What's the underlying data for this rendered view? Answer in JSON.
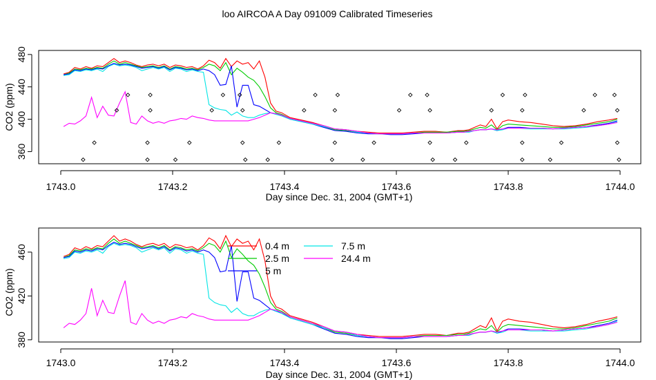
{
  "title": "loo AIRCOA A  Day 091009  Calibrated Timeseries",
  "colors": {
    "0.4 m": "#ff0000",
    "2.5 m": "#00cc00",
    "5 m": "#0000ff",
    "7.5 m": "#00e5e5",
    "24.4 m": "#ff00ff",
    "points": "#000000",
    "frame": "#000000"
  },
  "chart_data": [
    {
      "type": "line",
      "xlabel": "Day since Dec. 31, 2004 (GMT+1)",
      "ylabel": "CO2 (ppm)",
      "xlim": [
        1743.0,
        1744.0
      ],
      "ylim": [
        345,
        485
      ],
      "xticks": [
        1743.0,
        1743.2,
        1743.4,
        1743.6,
        1743.8,
        1744.0
      ],
      "xtick_labels": [
        "1743.0",
        "1743.2",
        "1743.4",
        "1743.6",
        "1743.8",
        "1744.0"
      ],
      "yticks": [
        360,
        400,
        440,
        480
      ],
      "ytick_labels": [
        "360",
        "400",
        "440",
        "480"
      ],
      "grid": false,
      "legend": "none",
      "points": [
        {
          "x": 1743.04,
          "y": 350
        },
        {
          "x": 1743.06,
          "y": 371
        },
        {
          "x": 1743.1,
          "y": 411
        },
        {
          "x": 1743.12,
          "y": 430
        },
        {
          "x": 1743.155,
          "y": 350
        },
        {
          "x": 1743.155,
          "y": 371
        },
        {
          "x": 1743.16,
          "y": 411
        },
        {
          "x": 1743.16,
          "y": 430
        },
        {
          "x": 1743.205,
          "y": 350
        },
        {
          "x": 1743.23,
          "y": 371
        },
        {
          "x": 1743.27,
          "y": 411
        },
        {
          "x": 1743.29,
          "y": 430
        },
        {
          "x": 1743.32,
          "y": 430
        },
        {
          "x": 1743.325,
          "y": 411
        },
        {
          "x": 1743.325,
          "y": 371
        },
        {
          "x": 1743.33,
          "y": 350
        },
        {
          "x": 1743.37,
          "y": 350
        },
        {
          "x": 1743.39,
          "y": 371
        },
        {
          "x": 1743.435,
          "y": 411
        },
        {
          "x": 1743.455,
          "y": 430
        },
        {
          "x": 1743.485,
          "y": 350
        },
        {
          "x": 1743.49,
          "y": 371
        },
        {
          "x": 1743.49,
          "y": 411
        },
        {
          "x": 1743.495,
          "y": 430
        },
        {
          "x": 1743.54,
          "y": 350
        },
        {
          "x": 1743.56,
          "y": 371
        },
        {
          "x": 1743.605,
          "y": 411
        },
        {
          "x": 1743.625,
          "y": 430
        },
        {
          "x": 1743.655,
          "y": 430
        },
        {
          "x": 1743.66,
          "y": 411
        },
        {
          "x": 1743.66,
          "y": 371
        },
        {
          "x": 1743.665,
          "y": 350
        },
        {
          "x": 1743.705,
          "y": 350
        },
        {
          "x": 1743.725,
          "y": 371
        },
        {
          "x": 1743.77,
          "y": 411
        },
        {
          "x": 1743.79,
          "y": 430
        },
        {
          "x": 1743.825,
          "y": 350
        },
        {
          "x": 1743.825,
          "y": 371
        },
        {
          "x": 1743.825,
          "y": 411
        },
        {
          "x": 1743.83,
          "y": 430
        },
        {
          "x": 1743.875,
          "y": 350
        },
        {
          "x": 1743.895,
          "y": 371
        },
        {
          "x": 1743.935,
          "y": 411
        },
        {
          "x": 1743.955,
          "y": 430
        },
        {
          "x": 1743.99,
          "y": 430
        },
        {
          "x": 1743.995,
          "y": 411
        },
        {
          "x": 1743.995,
          "y": 371
        },
        {
          "x": 1743.998,
          "y": 350
        }
      ]
    },
    {
      "type": "line",
      "xlabel": "Day since Dec. 31, 2004 (GMT+1)",
      "ylabel": "CO2 (ppm)",
      "xlim": [
        1743.0,
        1744.0
      ],
      "ylim": [
        378,
        482
      ],
      "xticks": [
        1743.0,
        1743.2,
        1743.4,
        1743.6,
        1743.8,
        1744.0
      ],
      "xtick_labels": [
        "1743.0",
        "1743.2",
        "1743.4",
        "1743.6",
        "1743.8",
        "1744.0"
      ],
      "yticks": [
        380,
        420,
        460
      ],
      "ytick_labels": [
        "380",
        "420",
        "460"
      ],
      "grid": false,
      "legend": "inside top-center, two columns"
    }
  ],
  "series": [
    {
      "name": "0.4 m",
      "x": [
        1743.005,
        1743.015,
        1743.025,
        1743.035,
        1743.045,
        1743.055,
        1743.065,
        1743.075,
        1743.085,
        1743.095,
        1743.105,
        1743.115,
        1743.125,
        1743.135,
        1743.145,
        1743.155,
        1743.165,
        1743.175,
        1743.185,
        1743.195,
        1743.205,
        1743.215,
        1743.225,
        1743.235,
        1743.245,
        1743.255,
        1743.265,
        1743.275,
        1743.285,
        1743.295,
        1743.305,
        1743.315,
        1743.325,
        1743.335,
        1743.345,
        1743.355,
        1743.365,
        1743.375,
        1743.385,
        1743.395,
        1743.41,
        1743.43,
        1743.45,
        1743.47,
        1743.49,
        1743.51,
        1743.53,
        1743.55,
        1743.57,
        1743.59,
        1743.61,
        1743.63,
        1743.65,
        1743.67,
        1743.69,
        1743.71,
        1743.72,
        1743.73,
        1743.74,
        1743.75,
        1743.76,
        1743.77,
        1743.78,
        1743.79,
        1743.8,
        1743.82,
        1743.84,
        1743.86,
        1743.88,
        1743.9,
        1743.92,
        1743.94,
        1743.96,
        1743.98,
        1743.995
      ],
      "y": [
        456,
        458,
        464,
        462,
        465,
        463,
        466,
        465,
        470,
        475,
        470,
        472,
        470,
        467,
        465,
        467,
        468,
        466,
        468,
        464,
        467,
        466,
        464,
        465,
        462,
        466,
        473,
        470,
        463,
        475,
        465,
        472,
        468,
        470,
        462,
        472,
        452,
        420,
        410,
        408,
        402,
        399,
        396,
        392,
        388,
        387,
        385,
        384,
        383,
        383,
        383,
        384,
        385,
        385,
        384,
        386,
        386,
        387,
        390,
        393,
        391,
        400,
        388,
        397,
        399,
        397,
        396,
        394,
        392,
        391,
        392,
        394,
        397,
        399,
        401
      ]
    },
    {
      "name": "2.5 m",
      "x": [
        1743.005,
        1743.015,
        1743.025,
        1743.035,
        1743.045,
        1743.055,
        1743.065,
        1743.075,
        1743.085,
        1743.095,
        1743.105,
        1743.115,
        1743.125,
        1743.135,
        1743.145,
        1743.155,
        1743.165,
        1743.175,
        1743.185,
        1743.195,
        1743.205,
        1743.215,
        1743.225,
        1743.235,
        1743.245,
        1743.255,
        1743.265,
        1743.275,
        1743.285,
        1743.295,
        1743.305,
        1743.315,
        1743.325,
        1743.335,
        1743.345,
        1743.355,
        1743.365,
        1743.375,
        1743.385,
        1743.395,
        1743.41,
        1743.43,
        1743.45,
        1743.47,
        1743.49,
        1743.51,
        1743.53,
        1743.55,
        1743.57,
        1743.59,
        1743.61,
        1743.63,
        1743.65,
        1743.67,
        1743.69,
        1743.71,
        1743.72,
        1743.73,
        1743.74,
        1743.75,
        1743.76,
        1743.77,
        1743.78,
        1743.79,
        1743.8,
        1743.82,
        1743.84,
        1743.86,
        1743.88,
        1743.9,
        1743.92,
        1743.94,
        1743.96,
        1743.98,
        1743.995
      ],
      "y": [
        455,
        457,
        462,
        461,
        463,
        462,
        464,
        463,
        468,
        472,
        468,
        470,
        468,
        466,
        464,
        465,
        466,
        464,
        466,
        462,
        465,
        464,
        462,
        463,
        461,
        464,
        468,
        466,
        460,
        470,
        455,
        463,
        458,
        452,
        448,
        440,
        428,
        414,
        408,
        406,
        401,
        398,
        395,
        391,
        387,
        386,
        384,
        383,
        382,
        382,
        382,
        383,
        384,
        384,
        384,
        385,
        385,
        386,
        388,
        390,
        389,
        393,
        387,
        392,
        394,
        393,
        392,
        391,
        390,
        390,
        391,
        393,
        395,
        397,
        400
      ]
    },
    {
      "name": "5 m",
      "x": [
        1743.005,
        1743.015,
        1743.025,
        1743.035,
        1743.045,
        1743.055,
        1743.065,
        1743.075,
        1743.085,
        1743.095,
        1743.105,
        1743.115,
        1743.125,
        1743.135,
        1743.145,
        1743.155,
        1743.165,
        1743.175,
        1743.185,
        1743.195,
        1743.205,
        1743.215,
        1743.225,
        1743.235,
        1743.245,
        1743.255,
        1743.265,
        1743.275,
        1743.285,
        1743.295,
        1743.305,
        1743.315,
        1743.325,
        1743.335,
        1743.345,
        1743.355,
        1743.365,
        1743.375,
        1743.385,
        1743.395,
        1743.41,
        1743.43,
        1743.45,
        1743.47,
        1743.49,
        1743.51,
        1743.53,
        1743.55,
        1743.57,
        1743.59,
        1743.61,
        1743.63,
        1743.65,
        1743.67,
        1743.69,
        1743.71,
        1743.72,
        1743.73,
        1743.74,
        1743.75,
        1743.76,
        1743.77,
        1743.78,
        1743.79,
        1743.8,
        1743.82,
        1743.84,
        1743.86,
        1743.88,
        1743.9,
        1743.92,
        1743.94,
        1743.96,
        1743.98,
        1743.995
      ],
      "y": [
        455,
        456,
        461,
        460,
        462,
        461,
        463,
        462,
        466,
        469,
        467,
        468,
        467,
        465,
        463,
        464,
        465,
        463,
        465,
        461,
        464,
        463,
        461,
        462,
        460,
        462,
        460,
        455,
        442,
        443,
        466,
        415,
        442,
        442,
        418,
        416,
        412,
        408,
        406,
        405,
        400,
        397,
        394,
        390,
        386,
        385,
        383,
        382,
        382,
        381,
        381,
        382,
        383,
        383,
        383,
        384,
        384,
        385,
        386,
        387,
        387,
        388,
        386,
        388,
        390,
        390,
        389,
        389,
        388,
        389,
        390,
        391,
        393,
        395,
        398
      ]
    },
    {
      "name": "7.5 m",
      "x": [
        1743.005,
        1743.015,
        1743.025,
        1743.035,
        1743.045,
        1743.055,
        1743.065,
        1743.075,
        1743.085,
        1743.095,
        1743.105,
        1743.115,
        1743.125,
        1743.135,
        1743.145,
        1743.155,
        1743.165,
        1743.175,
        1743.185,
        1743.195,
        1743.205,
        1743.215,
        1743.225,
        1743.235,
        1743.245,
        1743.255,
        1743.265,
        1743.275,
        1743.285,
        1743.295,
        1743.305,
        1743.315,
        1743.325,
        1743.335,
        1743.345,
        1743.355,
        1743.365,
        1743.375,
        1743.385,
        1743.395,
        1743.41,
        1743.43,
        1743.45,
        1743.47,
        1743.49,
        1743.51,
        1743.53,
        1743.55,
        1743.57,
        1743.59,
        1743.61,
        1743.63,
        1743.65,
        1743.67,
        1743.69,
        1743.71,
        1743.72,
        1743.73,
        1743.74,
        1743.75,
        1743.76,
        1743.77,
        1743.78,
        1743.79,
        1743.8,
        1743.82,
        1743.84,
        1743.86,
        1743.88,
        1743.9,
        1743.92,
        1743.94,
        1743.96,
        1743.98,
        1743.995
      ],
      "y": [
        454,
        455,
        460,
        459,
        461,
        460,
        462,
        459,
        465,
        468,
        466,
        467,
        466,
        464,
        460,
        462,
        464,
        462,
        464,
        459,
        463,
        462,
        459,
        461,
        459,
        458,
        418,
        414,
        412,
        411,
        405,
        409,
        404,
        402,
        402,
        405,
        407,
        408,
        406,
        404,
        400,
        397,
        394,
        391,
        388,
        387,
        384,
        383,
        382,
        382,
        382,
        383,
        383,
        383,
        383,
        384,
        384,
        384,
        386,
        387,
        387,
        388,
        386,
        387,
        389,
        389,
        388,
        388,
        388,
        388,
        389,
        390,
        392,
        394,
        397
      ]
    },
    {
      "name": "24.4 m",
      "x": [
        1743.005,
        1743.015,
        1743.025,
        1743.035,
        1743.045,
        1743.055,
        1743.065,
        1743.075,
        1743.085,
        1743.095,
        1743.105,
        1743.115,
        1743.125,
        1743.135,
        1743.145,
        1743.155,
        1743.165,
        1743.175,
        1743.185,
        1743.195,
        1743.205,
        1743.215,
        1743.225,
        1743.235,
        1743.245,
        1743.255,
        1743.265,
        1743.275,
        1743.285,
        1743.295,
        1743.305,
        1743.315,
        1743.325,
        1743.335,
        1743.345,
        1743.355,
        1743.365,
        1743.375,
        1743.385,
        1743.395,
        1743.41,
        1743.43,
        1743.45,
        1743.47,
        1743.49,
        1743.51,
        1743.53,
        1743.55,
        1743.57,
        1743.59,
        1743.61,
        1743.63,
        1743.65,
        1743.67,
        1743.69,
        1743.71,
        1743.72,
        1743.73,
        1743.74,
        1743.75,
        1743.76,
        1743.77,
        1743.78,
        1743.79,
        1743.8,
        1743.82,
        1743.84,
        1743.86,
        1743.88,
        1743.9,
        1743.92,
        1743.94,
        1743.96,
        1743.98,
        1743.995
      ],
      "y": [
        391,
        395,
        394,
        398,
        404,
        427,
        402,
        416,
        405,
        404,
        420,
        434,
        396,
        394,
        404,
        398,
        395,
        397,
        395,
        398,
        399,
        401,
        400,
        404,
        402,
        401,
        399,
        398,
        398,
        398,
        398,
        398,
        398,
        398,
        400,
        402,
        405,
        408,
        407,
        405,
        401,
        398,
        395,
        392,
        388,
        387,
        385,
        383,
        382,
        382,
        382,
        383,
        383,
        383,
        383,
        384,
        384,
        385,
        386,
        387,
        387,
        388,
        387,
        388,
        389,
        389,
        389,
        389,
        388,
        389,
        390,
        391,
        392,
        394,
        396
      ]
    }
  ],
  "legend": {
    "col1": [
      "0.4 m",
      "2.5 m",
      "5 m"
    ],
    "col2": [
      "7.5 m",
      "24.4 m"
    ]
  }
}
